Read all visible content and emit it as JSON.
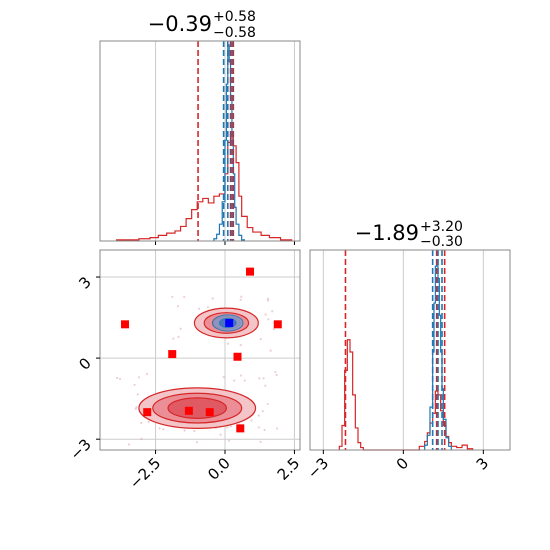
{
  "colors": {
    "red": "#d62728",
    "blue": "#1f77b4",
    "marker_red": "#ff0000",
    "marker_blue": "#0000ff",
    "grid": "#cccccc",
    "spine": "#888888"
  },
  "chart_data": [
    {
      "type": "histogram",
      "panel": "marginal-x",
      "title": {
        "value": "−0.39",
        "plus": "+0.58",
        "minus": "−0.58"
      },
      "xlim": [
        -4.5,
        2.7
      ],
      "x_ticks": [
        "−2.5",
        "0.0",
        "2.5"
      ],
      "red_series": {
        "bins": [
          -3.9,
          -3.5,
          -3.1,
          -2.7,
          -2.4,
          -2.1,
          -1.8,
          -1.6,
          -1.4,
          -1.2,
          -1.0,
          -0.8,
          -0.6,
          -0.4,
          -0.2,
          0.0,
          0.1,
          0.2,
          0.3,
          0.4,
          0.5,
          0.6,
          0.8,
          1.0,
          1.3,
          1.6,
          2.0,
          2.4
        ],
        "heights": [
          1,
          1,
          2,
          3,
          5,
          7,
          9,
          13,
          20,
          28,
          35,
          38,
          34,
          40,
          42,
          60,
          88,
          95,
          85,
          70,
          40,
          22,
          12,
          8,
          5,
          3,
          1
        ]
      },
      "blue_series": {
        "bins": [
          -0.4,
          -0.3,
          -0.2,
          -0.1,
          0.0,
          0.05,
          0.1,
          0.15,
          0.2,
          0.25,
          0.3,
          0.35,
          0.4,
          0.5,
          0.6,
          0.7
        ],
        "heights": [
          2,
          6,
          15,
          35,
          90,
          140,
          175,
          160,
          130,
          90,
          60,
          30,
          15,
          5,
          1
        ]
      },
      "red_quantiles": [
        -0.97,
        0.2,
        0.3
      ],
      "blue_quantiles": [
        -0.05,
        0.1,
        0.25
      ]
    },
    {
      "type": "histogram",
      "panel": "marginal-y",
      "title": {
        "value": "−1.89",
        "plus": "+3.20",
        "minus": "−0.30"
      },
      "xlim": [
        -3.5,
        4.0
      ],
      "x_ticks": [
        "−3",
        "0",
        "3"
      ],
      "red_series": {
        "bins": [
          -2.4,
          -2.3,
          -2.2,
          -2.1,
          -2.0,
          -1.9,
          -1.8,
          -1.7,
          -1.6,
          -1.5,
          -1.4,
          0.6,
          0.8,
          0.9,
          1.0,
          1.1,
          1.2,
          1.3,
          1.4,
          1.5,
          1.6,
          1.7,
          1.8,
          2.0,
          2.2,
          2.4,
          2.6
        ],
        "heights": [
          3,
          20,
          65,
          90,
          80,
          45,
          18,
          6,
          2,
          0,
          0,
          3,
          7,
          14,
          22,
          30,
          48,
          45,
          32,
          20,
          11,
          6,
          3,
          2,
          4,
          1
        ]
      },
      "blue_series": {
        "bins": [
          0.8,
          0.9,
          1.0,
          1.1,
          1.15,
          1.2,
          1.25,
          1.3,
          1.35,
          1.4,
          1.45,
          1.5,
          1.6,
          1.7,
          1.8
        ],
        "heights": [
          4,
          12,
          35,
          80,
          120,
          150,
          155,
          140,
          110,
          80,
          50,
          25,
          10,
          3
        ]
      },
      "red_quantiles": [
        -2.17,
        1.25,
        1.55
      ],
      "blue_quantiles": [
        1.1,
        1.3,
        1.45
      ]
    },
    {
      "type": "contour",
      "panel": "joint",
      "xlim": [
        -4.5,
        2.7
      ],
      "ylim": [
        -3.4,
        4.0
      ],
      "x_ticks": [
        "−2.5",
        "0.0",
        "2.5"
      ],
      "y_ticks": [
        "3",
        "0",
        "−3"
      ],
      "red_modes": [
        {
          "cx": 0.05,
          "cy": 1.3,
          "levels": [
            [
              1.15,
              0.55
            ],
            [
              0.8,
              0.38
            ],
            [
              0.5,
              0.23
            ]
          ]
        },
        {
          "cx": -1.0,
          "cy": -1.85,
          "levels": [
            [
              2.1,
              0.75
            ],
            [
              1.6,
              0.55
            ],
            [
              1.05,
              0.38
            ]
          ]
        }
      ],
      "blue_mode": {
        "cx": 0.1,
        "cy": 1.3,
        "levels": [
          [
            0.55,
            0.3
          ],
          [
            0.3,
            0.17
          ]
        ]
      },
      "red_markers": [
        [
          0.9,
          3.2
        ],
        [
          -3.6,
          1.25
        ],
        [
          1.9,
          1.25
        ],
        [
          -1.9,
          0.15
        ],
        [
          0.45,
          0.05
        ],
        [
          -2.8,
          -2.0
        ],
        [
          -1.3,
          -1.95
        ],
        [
          -0.55,
          -2.0
        ],
        [
          0.55,
          -2.6
        ]
      ],
      "blue_marker": [
        0.15,
        1.3
      ]
    }
  ]
}
